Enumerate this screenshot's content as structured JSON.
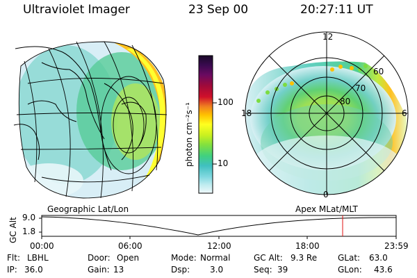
{
  "header": {
    "instrument": "Ultraviolet Imager",
    "date": "23 Sep 00",
    "time": "20:27:11 UT"
  },
  "colorbar": {
    "unit_label": "photon cm⁻²s⁻¹",
    "ticks": [
      "100",
      "10"
    ],
    "colors": [
      "#1a0a28",
      "#3a0a50",
      "#6a0a60",
      "#a00a3a",
      "#d0102a",
      "#f08020",
      "#ffc000",
      "#ffff20",
      "#c8f020",
      "#80e040",
      "#40d080",
      "#40c0c0",
      "#80d8e0",
      "#c0ecf0",
      "#f0f8fa"
    ]
  },
  "panels": {
    "left_label": "Geographic Lat/Lon",
    "right_label": "Apex MLat/MLT",
    "polar_labels": {
      "top": "12",
      "left": "18",
      "right": "6",
      "bottom": "0"
    },
    "ring_labels": [
      "60",
      "70",
      "80"
    ]
  },
  "altitude_plot": {
    "ylabel": "GC Alt",
    "ytick_top": "9.0",
    "ytick_bottom": "1.8",
    "xticks": [
      "00:00",
      "06:00",
      "12:00",
      "18:00",
      "23:59"
    ],
    "marker_color": "#e01010"
  },
  "metadata": {
    "flt_label": "Flt:",
    "flt_value": "LBHL",
    "ip_label": "IP:",
    "ip_value": "36.0",
    "door_label": "Door:",
    "door_value": "Open",
    "gain_label": "Gain:",
    "gain_value": "13",
    "mode_label": "Mode:",
    "mode_value": "Normal",
    "dsp_label": "Dsp:",
    "dsp_value": "3.0",
    "gcalt_label": "GC Alt:",
    "gcalt_value": "9.3 Re",
    "seq_label": "Seq:",
    "seq_value": "39",
    "glat_label": "GLat:",
    "glat_value": "63.0",
    "glon_label": "GLon:",
    "glon_value": "43.6"
  }
}
